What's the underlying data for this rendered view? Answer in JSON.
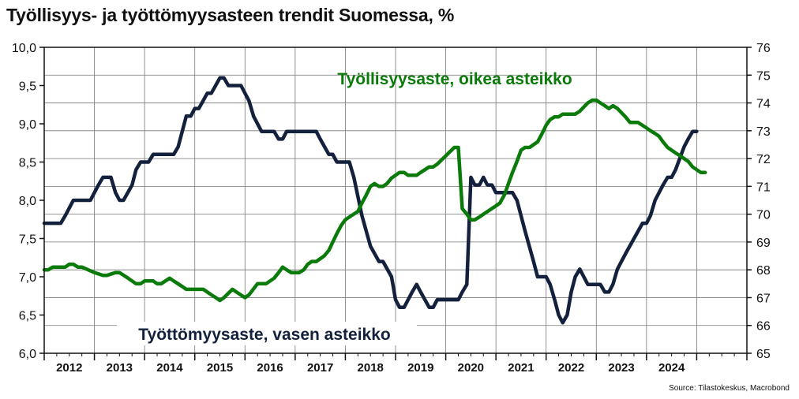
{
  "title": "Työllisyys- ja työttömyysasteen trendit Suomessa, %",
  "source": "Source: Tilastokeskus, Macrobond",
  "chart_data": {
    "type": "line",
    "x_axis": {
      "tick_labels": [
        "2012",
        "2013",
        "2014",
        "2015",
        "2016",
        "2017",
        "2018",
        "2019",
        "2020",
        "2021",
        "2022",
        "2023",
        "2024"
      ],
      "range": [
        2011.0,
        2025.0
      ]
    },
    "y_left": {
      "range": [
        6.0,
        10.0
      ],
      "ticks": [
        "6,0",
        "6,5",
        "7,0",
        "7,5",
        "8,0",
        "8,5",
        "9,0",
        "9,5",
        "10,0"
      ]
    },
    "y_right": {
      "range": [
        65,
        76
      ],
      "ticks": [
        "65",
        "66",
        "67",
        "68",
        "69",
        "70",
        "71",
        "72",
        "73",
        "74",
        "75",
        "76"
      ]
    },
    "grid": true,
    "series": [
      {
        "name": "Työttömyysaste, vasen asteikko",
        "axis": "left",
        "color": "#14213d",
        "points": [
          [
            2011.0,
            7.7
          ],
          [
            2011.33,
            7.7
          ],
          [
            2011.42,
            7.8
          ],
          [
            2011.58,
            8.0
          ],
          [
            2011.92,
            8.0
          ],
          [
            2012.08,
            8.2
          ],
          [
            2012.17,
            8.3
          ],
          [
            2012.33,
            8.3
          ],
          [
            2012.42,
            8.1
          ],
          [
            2012.5,
            8.0
          ],
          [
            2012.58,
            8.0
          ],
          [
            2012.75,
            8.2
          ],
          [
            2012.83,
            8.4
          ],
          [
            2012.92,
            8.5
          ],
          [
            2013.08,
            8.5
          ],
          [
            2013.17,
            8.6
          ],
          [
            2013.58,
            8.6
          ],
          [
            2013.67,
            8.7
          ],
          [
            2013.83,
            9.1
          ],
          [
            2013.92,
            9.1
          ],
          [
            2014.0,
            9.2
          ],
          [
            2014.08,
            9.2
          ],
          [
            2014.25,
            9.4
          ],
          [
            2014.33,
            9.4
          ],
          [
            2014.5,
            9.6
          ],
          [
            2014.58,
            9.6
          ],
          [
            2014.67,
            9.5
          ],
          [
            2014.92,
            9.5
          ],
          [
            2015.08,
            9.3
          ],
          [
            2015.17,
            9.1
          ],
          [
            2015.33,
            8.9
          ],
          [
            2015.58,
            8.9
          ],
          [
            2015.67,
            8.8
          ],
          [
            2015.75,
            8.8
          ],
          [
            2015.83,
            8.9
          ],
          [
            2016.42,
            8.9
          ],
          [
            2016.5,
            8.8
          ],
          [
            2016.67,
            8.6
          ],
          [
            2016.75,
            8.6
          ],
          [
            2016.83,
            8.5
          ],
          [
            2017.08,
            8.5
          ],
          [
            2017.17,
            8.3
          ],
          [
            2017.33,
            7.8
          ],
          [
            2017.5,
            7.4
          ],
          [
            2017.67,
            7.2
          ],
          [
            2017.75,
            7.2
          ],
          [
            2017.92,
            7.0
          ],
          [
            2018.0,
            6.7
          ],
          [
            2018.08,
            6.6
          ],
          [
            2018.17,
            6.6
          ],
          [
            2018.33,
            6.8
          ],
          [
            2018.42,
            6.9
          ],
          [
            2018.5,
            6.8
          ],
          [
            2018.67,
            6.6
          ],
          [
            2018.75,
            6.6
          ],
          [
            2018.83,
            6.7
          ],
          [
            2019.25,
            6.7
          ],
          [
            2019.33,
            6.8
          ],
          [
            2019.42,
            6.9
          ],
          [
            2019.5,
            8.3
          ],
          [
            2019.58,
            8.2
          ],
          [
            2019.67,
            8.2
          ],
          [
            2019.75,
            8.3
          ],
          [
            2019.83,
            8.2
          ],
          [
            2019.92,
            8.2
          ],
          [
            2020.0,
            8.1
          ],
          [
            2020.33,
            8.1
          ],
          [
            2020.42,
            8.0
          ],
          [
            2020.58,
            7.6
          ],
          [
            2020.75,
            7.2
          ],
          [
            2020.83,
            7.0
          ],
          [
            2021.0,
            7.0
          ],
          [
            2021.08,
            6.9
          ],
          [
            2021.17,
            6.7
          ],
          [
            2021.25,
            6.5
          ],
          [
            2021.33,
            6.4
          ],
          [
            2021.42,
            6.5
          ],
          [
            2021.5,
            6.8
          ],
          [
            2021.58,
            7.0
          ],
          [
            2021.67,
            7.1
          ],
          [
            2021.75,
            7.0
          ],
          [
            2021.83,
            6.9
          ],
          [
            2022.08,
            6.9
          ],
          [
            2022.17,
            6.8
          ],
          [
            2022.25,
            6.8
          ],
          [
            2022.33,
            6.9
          ],
          [
            2022.42,
            7.1
          ],
          [
            2022.58,
            7.3
          ],
          [
            2022.75,
            7.5
          ],
          [
            2022.92,
            7.7
          ],
          [
            2023.0,
            7.7
          ],
          [
            2023.08,
            7.8
          ],
          [
            2023.17,
            8.0
          ],
          [
            2023.33,
            8.2
          ],
          [
            2023.42,
            8.3
          ],
          [
            2023.5,
            8.3
          ],
          [
            2023.58,
            8.4
          ],
          [
            2023.75,
            8.7
          ],
          [
            2023.83,
            8.8
          ],
          [
            2023.92,
            8.9
          ],
          [
            2024.0,
            8.9
          ]
        ]
      },
      {
        "name": "Työllisyysaste, oikea asteikko",
        "axis": "right",
        "color": "#0a7a0a",
        "points": [
          [
            2011.0,
            68.0
          ],
          [
            2011.08,
            68.0
          ],
          [
            2011.17,
            68.1
          ],
          [
            2011.42,
            68.1
          ],
          [
            2011.5,
            68.2
          ],
          [
            2011.58,
            68.2
          ],
          [
            2011.67,
            68.1
          ],
          [
            2011.75,
            68.1
          ],
          [
            2012.0,
            67.9
          ],
          [
            2012.17,
            67.8
          ],
          [
            2012.25,
            67.8
          ],
          [
            2012.42,
            67.9
          ],
          [
            2012.5,
            67.9
          ],
          [
            2012.67,
            67.7
          ],
          [
            2012.83,
            67.5
          ],
          [
            2012.92,
            67.5
          ],
          [
            2013.0,
            67.6
          ],
          [
            2013.17,
            67.6
          ],
          [
            2013.25,
            67.5
          ],
          [
            2013.33,
            67.5
          ],
          [
            2013.5,
            67.7
          ],
          [
            2013.58,
            67.6
          ],
          [
            2013.75,
            67.4
          ],
          [
            2013.83,
            67.3
          ],
          [
            2014.17,
            67.3
          ],
          [
            2014.33,
            67.1
          ],
          [
            2014.42,
            67.0
          ],
          [
            2014.5,
            66.9
          ],
          [
            2014.58,
            67.0
          ],
          [
            2014.75,
            67.3
          ],
          [
            2014.83,
            67.2
          ],
          [
            2015.0,
            67.0
          ],
          [
            2015.08,
            67.1
          ],
          [
            2015.25,
            67.5
          ],
          [
            2015.42,
            67.5
          ],
          [
            2015.58,
            67.7
          ],
          [
            2015.67,
            67.9
          ],
          [
            2015.75,
            68.1
          ],
          [
            2015.83,
            68.0
          ],
          [
            2015.92,
            67.9
          ],
          [
            2016.08,
            67.9
          ],
          [
            2016.17,
            68.0
          ],
          [
            2016.25,
            68.2
          ],
          [
            2016.33,
            68.3
          ],
          [
            2016.42,
            68.3
          ],
          [
            2016.58,
            68.5
          ],
          [
            2016.67,
            68.7
          ],
          [
            2016.75,
            69.0
          ],
          [
            2016.83,
            69.3
          ],
          [
            2016.92,
            69.6
          ],
          [
            2017.0,
            69.8
          ],
          [
            2017.08,
            69.9
          ],
          [
            2017.25,
            70.1
          ],
          [
            2017.33,
            70.4
          ],
          [
            2017.42,
            70.7
          ],
          [
            2017.5,
            71.0
          ],
          [
            2017.58,
            71.1
          ],
          [
            2017.67,
            71.0
          ],
          [
            2017.75,
            71.0
          ],
          [
            2017.83,
            71.1
          ],
          [
            2017.92,
            71.3
          ],
          [
            2018.08,
            71.5
          ],
          [
            2018.17,
            71.5
          ],
          [
            2018.25,
            71.4
          ],
          [
            2018.42,
            71.4
          ],
          [
            2018.5,
            71.5
          ],
          [
            2018.67,
            71.7
          ],
          [
            2018.75,
            71.7
          ],
          [
            2018.83,
            71.8
          ],
          [
            2019.0,
            72.1
          ],
          [
            2019.17,
            72.4
          ],
          [
            2019.25,
            72.4
          ],
          [
            2019.33,
            70.2
          ],
          [
            2019.42,
            70.0
          ],
          [
            2019.5,
            69.8
          ],
          [
            2019.58,
            69.8
          ],
          [
            2019.67,
            69.9
          ],
          [
            2019.75,
            70.0
          ],
          [
            2020.0,
            70.3
          ],
          [
            2020.08,
            70.4
          ],
          [
            2020.17,
            70.7
          ],
          [
            2020.25,
            71.1
          ],
          [
            2020.33,
            71.5
          ],
          [
            2020.42,
            71.9
          ],
          [
            2020.5,
            72.3
          ],
          [
            2020.58,
            72.4
          ],
          [
            2020.67,
            72.4
          ],
          [
            2020.83,
            72.6
          ],
          [
            2020.92,
            72.9
          ],
          [
            2021.0,
            73.2
          ],
          [
            2021.08,
            73.4
          ],
          [
            2021.17,
            73.5
          ],
          [
            2021.25,
            73.5
          ],
          [
            2021.33,
            73.6
          ],
          [
            2021.58,
            73.6
          ],
          [
            2021.67,
            73.7
          ],
          [
            2021.83,
            74.0
          ],
          [
            2021.92,
            74.1
          ],
          [
            2022.0,
            74.1
          ],
          [
            2022.08,
            74.0
          ],
          [
            2022.17,
            73.9
          ],
          [
            2022.25,
            73.8
          ],
          [
            2022.33,
            73.9
          ],
          [
            2022.42,
            73.8
          ],
          [
            2022.58,
            73.5
          ],
          [
            2022.67,
            73.3
          ],
          [
            2022.75,
            73.3
          ],
          [
            2022.83,
            73.3
          ],
          [
            2023.0,
            73.1
          ],
          [
            2023.08,
            73.0
          ],
          [
            2023.17,
            72.9
          ],
          [
            2023.25,
            72.8
          ],
          [
            2023.33,
            72.6
          ],
          [
            2023.42,
            72.4
          ],
          [
            2023.58,
            72.2
          ],
          [
            2023.67,
            72.1
          ],
          [
            2023.75,
            72.0
          ],
          [
            2023.83,
            71.9
          ],
          [
            2023.92,
            71.7
          ],
          [
            2024.0,
            71.6
          ],
          [
            2024.08,
            71.5
          ],
          [
            2024.17,
            71.5
          ]
        ]
      }
    ],
    "annotations": [
      {
        "text": "Työllisyysaste, oikea asteikko",
        "color": "#0a7a0a"
      },
      {
        "text": "Työttömyysaste, vasen asteikko",
        "color": "#14213d"
      }
    ]
  }
}
